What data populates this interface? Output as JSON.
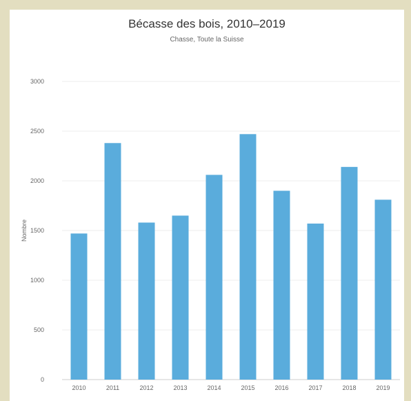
{
  "chart_data": {
    "type": "bar",
    "title": "Bécasse des bois, 2010–2019",
    "subtitle": "Chasse, Toute la Suisse",
    "xlabel": "",
    "ylabel": "Nombre",
    "categories": [
      "2010",
      "2011",
      "2012",
      "2013",
      "2014",
      "2015",
      "2016",
      "2017",
      "2018",
      "2019"
    ],
    "series": [
      {
        "values": [
          1470,
          2380,
          1580,
          1650,
          2060,
          2470,
          1900,
          1570,
          2140,
          1810
        ]
      }
    ],
    "ylim": [
      0,
      3000
    ],
    "yticks": [
      "0",
      "500",
      "1000",
      "1500",
      "2000",
      "2500",
      "3000"
    ],
    "grid": true,
    "legend": "none",
    "colors": {
      "bar": "#5aacdc",
      "grid": "#ececec",
      "axis": "#cccccc",
      "background": "#ffffff",
      "frame": "#e3dec0"
    }
  }
}
